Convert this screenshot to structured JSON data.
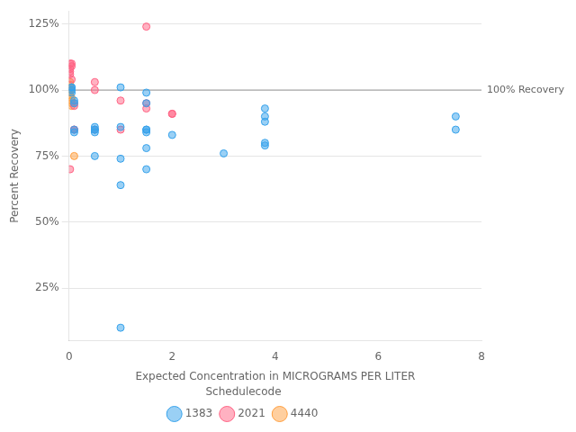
{
  "chart_data": {
    "type": "scatter",
    "xlabel": "Expected Concentration in MICROGRAMS PER LITER",
    "ylabel": "Percent Recovery",
    "xlim": [
      0,
      8
    ],
    "ylim": [
      5,
      130
    ],
    "xticks": [
      0,
      2,
      4,
      6,
      8
    ],
    "yticks": [
      {
        "value": 25,
        "label": "25%"
      },
      {
        "value": 50,
        "label": "50%"
      },
      {
        "value": 75,
        "label": "75%"
      },
      {
        "value": 100,
        "label": "100%"
      },
      {
        "value": 125,
        "label": "125%"
      }
    ],
    "grid": "y",
    "legend": "bottom",
    "legend_title": "Schedulecode",
    "series": [
      {
        "name": "1383",
        "x": [
          0.05,
          0.05,
          0.05,
          0.05,
          0.1,
          0.1,
          0.1,
          0.1,
          0.5,
          0.5,
          0.5,
          0.5,
          0.5,
          1.0,
          1.0,
          1.0,
          1.0,
          1.5,
          1.5,
          1.5,
          1.5,
          1.5,
          1.5,
          1.5,
          2.0,
          3.0,
          3.8,
          3.8,
          3.8,
          3.8,
          3.8,
          7.5,
          7.5,
          1.0
        ],
        "values": [
          101,
          99,
          100,
          101,
          96,
          95,
          84,
          85,
          84,
          85,
          85,
          86,
          75,
          101,
          74,
          64,
          86,
          99,
          95,
          84,
          85,
          85,
          78,
          70,
          83,
          76,
          93,
          90,
          88,
          80,
          79,
          90,
          85,
          10
        ]
      },
      {
        "name": "2021",
        "x": [
          0.02,
          0.02,
          0.02,
          0.02,
          0.02,
          0.05,
          0.05,
          0.05,
          0.1,
          0.1,
          0.1,
          0.1,
          0.5,
          0.5,
          0.5,
          1.0,
          1.0,
          1.5,
          1.5,
          1.5,
          2.0,
          2.0
        ],
        "values": [
          110,
          108,
          106,
          107,
          70,
          110,
          109,
          104,
          95,
          94,
          85,
          85,
          100,
          103,
          85,
          96,
          85,
          124,
          95,
          93,
          91,
          91
        ]
      },
      {
        "name": "4440",
        "x": [
          0.02,
          0.02,
          0.02,
          0.02,
          0.02,
          0.02,
          0.05,
          0.05,
          0.05,
          0.05,
          0.1
        ],
        "values": [
          103,
          102,
          101,
          100,
          99,
          98,
          97,
          96,
          95,
          94,
          75
        ]
      }
    ],
    "annotations": [
      {
        "type": "hline",
        "y": 100,
        "text": "100% Recovery",
        "color": "#999999"
      }
    ]
  }
}
